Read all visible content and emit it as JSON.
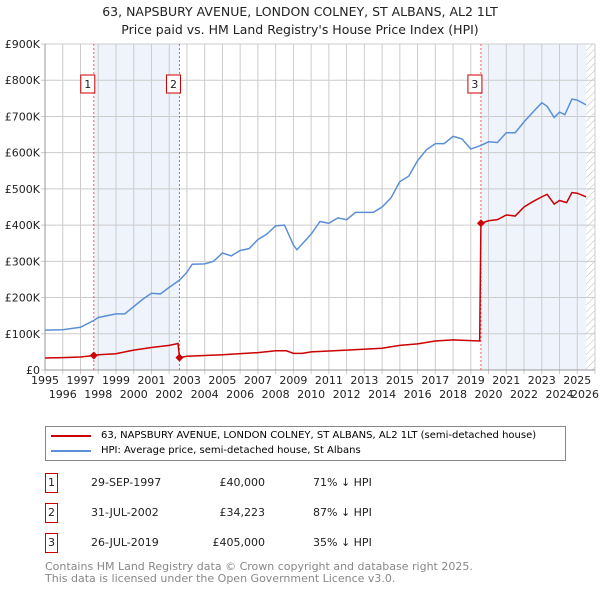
{
  "colors": {
    "property": "#cc0000",
    "hpi": "#5b8fd6",
    "shade": "#eef3fc",
    "grid": "#cccccc"
  },
  "chart_data": {
    "type": "line",
    "title": "63, NAPSBURY AVENUE, LONDON COLNEY, ST ALBANS, AL2 1LT",
    "subtitle": "Price paid vs. HM Land Registry's House Price Index (HPI)",
    "xlim": [
      1995,
      2026
    ],
    "ylim": [
      0,
      900000
    ],
    "x_ticks": [
      "1995",
      "1996",
      "1997",
      "1998",
      "1999",
      "2000",
      "2001",
      "2002",
      "2003",
      "2004",
      "2005",
      "2006",
      "2007",
      "2008",
      "2009",
      "2010",
      "2011",
      "2012",
      "2013",
      "2014",
      "2015",
      "2016",
      "2017",
      "2018",
      "2019",
      "2020",
      "2021",
      "2022",
      "2023",
      "2024",
      "2025",
      "2026"
    ],
    "y_ticks": [
      {
        "v": 0,
        "label": "£0"
      },
      {
        "v": 100000,
        "label": "£100K"
      },
      {
        "v": 200000,
        "label": "£200K"
      },
      {
        "v": 300000,
        "label": "£300K"
      },
      {
        "v": 400000,
        "label": "£400K"
      },
      {
        "v": 500000,
        "label": "£500K"
      },
      {
        "v": 600000,
        "label": "£600K"
      },
      {
        "v": 700000,
        "label": "£700K"
      },
      {
        "v": 800000,
        "label": "£800K"
      },
      {
        "v": 900000,
        "label": "£900K"
      }
    ],
    "grid": true,
    "series": [
      {
        "name": "63, NAPSBURY AVENUE, LONDON COLNEY, ST ALBANS, AL2 1LT (semi-detached house)",
        "color": "#cc0000",
        "points": [
          [
            1995,
            33000
          ],
          [
            1996,
            34000
          ],
          [
            1997,
            36000
          ],
          [
            1997.75,
            40000
          ],
          [
            1998,
            42000
          ],
          [
            1999,
            45000
          ],
          [
            2000,
            55000
          ],
          [
            2001,
            62000
          ],
          [
            2002,
            68000
          ],
          [
            2002.5,
            73000
          ],
          [
            2002.58,
            34223
          ],
          [
            2003,
            38000
          ],
          [
            2005,
            42000
          ],
          [
            2007,
            48000
          ],
          [
            2008,
            53000
          ],
          [
            2008.6,
            53000
          ],
          [
            2009,
            46000
          ],
          [
            2009.5,
            46000
          ],
          [
            2010,
            50000
          ],
          [
            2012,
            55000
          ],
          [
            2014,
            60000
          ],
          [
            2015,
            68000
          ],
          [
            2016,
            72000
          ],
          [
            2017,
            80000
          ],
          [
            2018,
            83000
          ],
          [
            2019.5,
            80000
          ],
          [
            2019.57,
            405000
          ],
          [
            2020,
            412000
          ],
          [
            2020.5,
            415000
          ],
          [
            2021,
            428000
          ],
          [
            2021.5,
            425000
          ],
          [
            2022,
            450000
          ],
          [
            2022.5,
            465000
          ],
          [
            2023,
            478000
          ],
          [
            2023.3,
            485000
          ],
          [
            2023.7,
            458000
          ],
          [
            2024,
            468000
          ],
          [
            2024.4,
            462000
          ],
          [
            2024.7,
            490000
          ],
          [
            2025,
            488000
          ],
          [
            2025.5,
            478000
          ]
        ]
      },
      {
        "name": "HPI: Average price, semi-detached house, St Albans",
        "color": "#5b8fd6",
        "points": [
          [
            1995,
            110000
          ],
          [
            1996,
            111000
          ],
          [
            1997,
            118000
          ],
          [
            1997.75,
            137000
          ],
          [
            1998,
            145000
          ],
          [
            1999,
            155000
          ],
          [
            1999.5,
            155000
          ],
          [
            2000,
            175000
          ],
          [
            2000.5,
            195000
          ],
          [
            2001,
            212000
          ],
          [
            2001.5,
            210000
          ],
          [
            2002,
            228000
          ],
          [
            2002.58,
            248000
          ],
          [
            2003,
            270000
          ],
          [
            2003.3,
            292000
          ],
          [
            2004,
            293000
          ],
          [
            2004.5,
            300000
          ],
          [
            2005,
            323000
          ],
          [
            2005.5,
            315000
          ],
          [
            2006,
            330000
          ],
          [
            2006.5,
            335000
          ],
          [
            2007,
            360000
          ],
          [
            2007.5,
            375000
          ],
          [
            2008,
            398000
          ],
          [
            2008.5,
            400000
          ],
          [
            2009,
            345000
          ],
          [
            2009.2,
            332000
          ],
          [
            2010,
            375000
          ],
          [
            2010.5,
            410000
          ],
          [
            2011,
            405000
          ],
          [
            2011.5,
            420000
          ],
          [
            2012,
            415000
          ],
          [
            2012.5,
            435000
          ],
          [
            2013.5,
            435000
          ],
          [
            2014,
            450000
          ],
          [
            2014.5,
            475000
          ],
          [
            2015,
            520000
          ],
          [
            2015.5,
            535000
          ],
          [
            2016,
            578000
          ],
          [
            2016.5,
            608000
          ],
          [
            2017,
            625000
          ],
          [
            2017.5,
            625000
          ],
          [
            2018,
            645000
          ],
          [
            2018.5,
            638000
          ],
          [
            2019,
            610000
          ],
          [
            2019.57,
            620000
          ],
          [
            2020,
            630000
          ],
          [
            2020.5,
            628000
          ],
          [
            2021,
            655000
          ],
          [
            2021.5,
            655000
          ],
          [
            2022,
            685000
          ],
          [
            2022.5,
            712000
          ],
          [
            2023,
            738000
          ],
          [
            2023.3,
            728000
          ],
          [
            2023.7,
            697000
          ],
          [
            2024,
            712000
          ],
          [
            2024.3,
            705000
          ],
          [
            2024.7,
            748000
          ],
          [
            2025,
            745000
          ],
          [
            2025.5,
            732000
          ]
        ]
      }
    ],
    "sales": [
      {
        "id": "1",
        "x": 1997.75,
        "price": 40000,
        "date": "29-SEP-1997",
        "price_label": "£40,000",
        "hpi": "71% ↓ HPI"
      },
      {
        "id": "2",
        "x": 2002.58,
        "price": 34223,
        "date": "31-JUL-2002",
        "price_label": "£34,223",
        "hpi": "87% ↓ HPI"
      },
      {
        "id": "3",
        "x": 2019.57,
        "price": 405000,
        "date": "26-JUL-2019",
        "price_label": "£405,000",
        "hpi": "35% ↓ HPI"
      }
    ],
    "shaded_ranges": [
      [
        1997.75,
        2002.58
      ],
      [
        2019.57,
        2025.5
      ]
    ],
    "hatched_from": 2025.5,
    "legend_placement": "below"
  },
  "footer": {
    "line1": "Contains HM Land Registry data © Crown copyright and database right 2025.",
    "line2": "This data is licensed under the Open Government Licence v3.0."
  }
}
